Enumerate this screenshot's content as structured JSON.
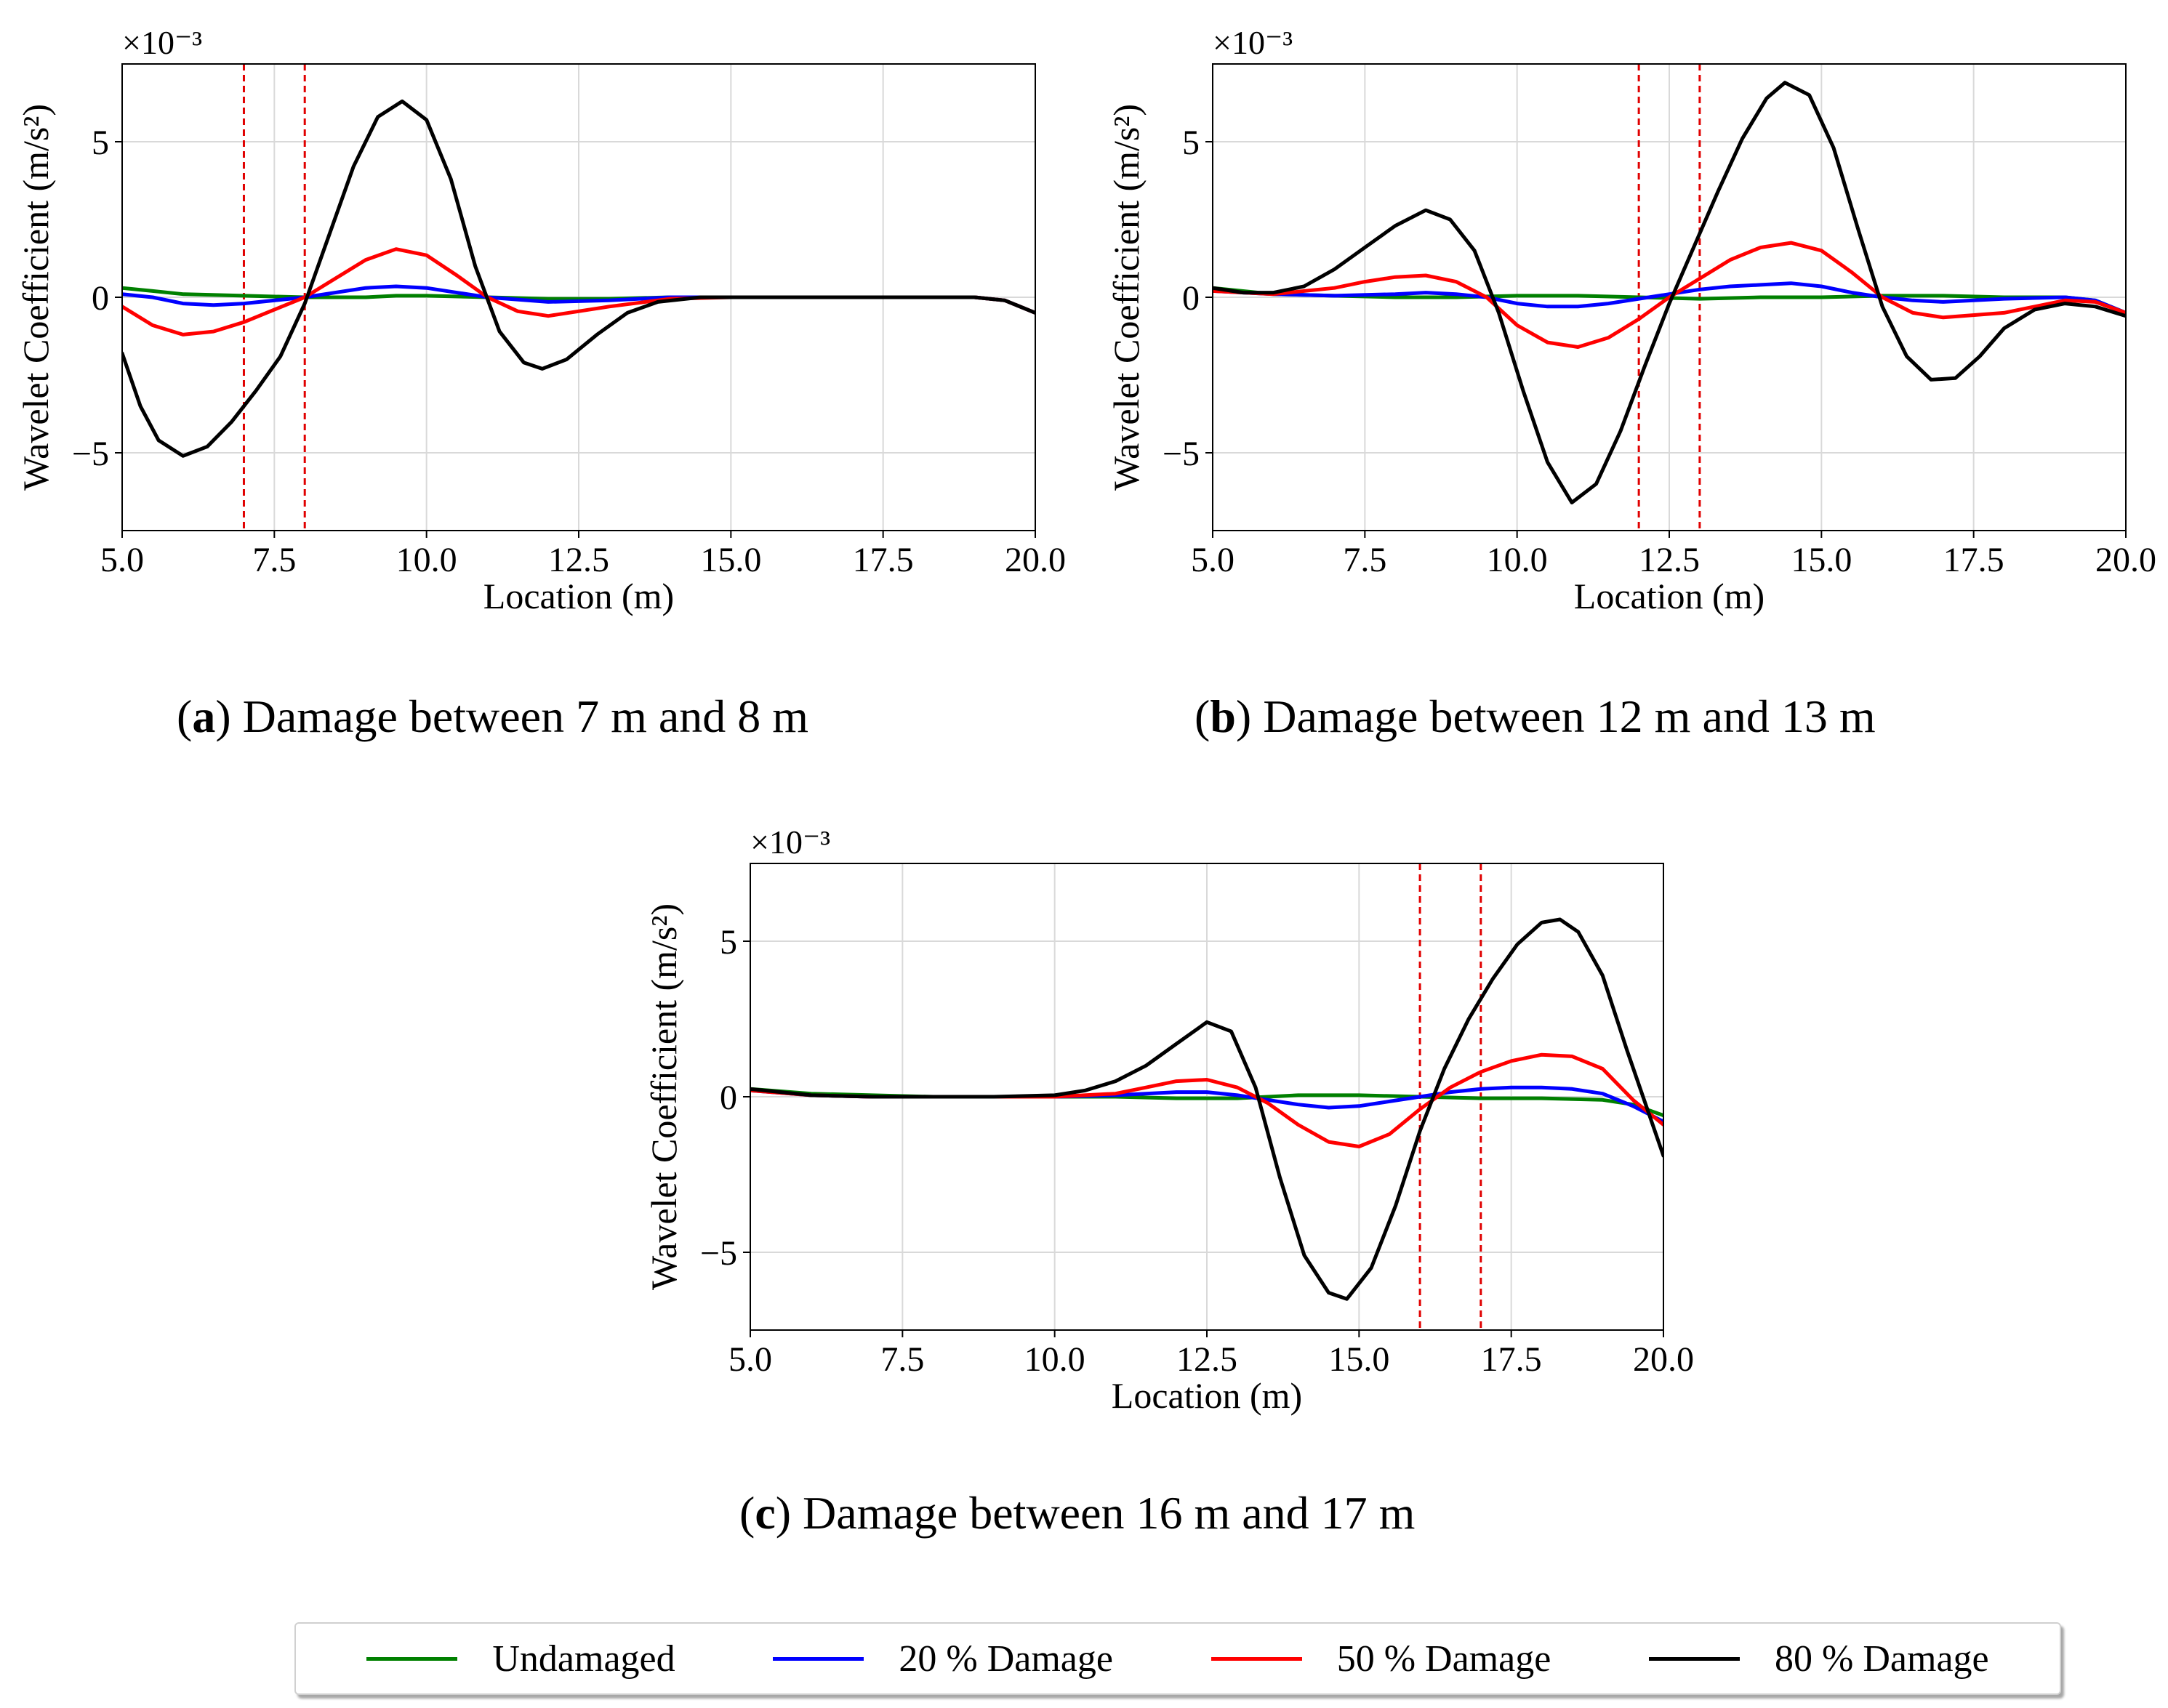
{
  "chart_data": [
    {
      "type": "line",
      "panel": "a",
      "caption_label": "a",
      "caption_text": "Damage between 7 m and 8 m",
      "xlabel": "Location (m)",
      "ylabel": "Wavelet Coefficient (m/s²)",
      "y_multiplier": "×10⁻³",
      "xlim": [
        5.0,
        20.0
      ],
      "ylim": [
        -7.5,
        7.5
      ],
      "xticks": [
        5.0,
        7.5,
        10.0,
        12.5,
        15.0,
        17.5,
        20.0
      ],
      "xtick_labels": [
        "5.0",
        "7.5",
        "10.0",
        "12.5",
        "15.0",
        "17.5",
        "20.0"
      ],
      "yticks": [
        -5,
        0,
        5
      ],
      "ytick_labels": [
        "−5",
        "0",
        "5"
      ],
      "grid": true,
      "damage_lines": [
        7.0,
        8.0
      ],
      "series": [
        {
          "name": "Undamaged",
          "x": [
            5,
            5.5,
            6,
            7,
            8,
            9,
            9.5,
            10,
            11,
            12,
            13,
            14,
            15,
            16,
            17,
            18,
            19,
            19.5,
            20
          ],
          "y": [
            0.3,
            0.2,
            0.1,
            0.05,
            0.0,
            0.0,
            0.05,
            0.05,
            0.0,
            -0.05,
            -0.05,
            0.0,
            0.0,
            0.0,
            0.0,
            0.0,
            0.0,
            -0.1,
            -0.5
          ]
        },
        {
          "name": "20 % Damage",
          "x": [
            5,
            5.5,
            6,
            6.5,
            7,
            8,
            9,
            9.5,
            10,
            11,
            12,
            13,
            14,
            15,
            16,
            17,
            18,
            19,
            19.5,
            20
          ],
          "y": [
            0.1,
            0.0,
            -0.2,
            -0.25,
            -0.2,
            0.0,
            0.3,
            0.35,
            0.3,
            0.0,
            -0.15,
            -0.1,
            0.0,
            0.0,
            0.0,
            0.0,
            0.0,
            0.0,
            -0.1,
            -0.5
          ]
        },
        {
          "name": "50 % Damage",
          "x": [
            5,
            5.5,
            6,
            6.5,
            7,
            7.5,
            8,
            8.5,
            9,
            9.5,
            10,
            10.5,
            11,
            11.5,
            12,
            13,
            14,
            15,
            16,
            17,
            18,
            19,
            19.5,
            20
          ],
          "y": [
            -0.3,
            -0.9,
            -1.2,
            -1.1,
            -0.8,
            -0.4,
            0.0,
            0.6,
            1.2,
            1.55,
            1.35,
            0.7,
            0.0,
            -0.45,
            -0.6,
            -0.3,
            -0.05,
            0.0,
            0.0,
            0.0,
            0.0,
            0.0,
            -0.1,
            -0.5
          ]
        },
        {
          "name": "80 % Damage",
          "x": [
            5,
            5.3,
            5.6,
            6.0,
            6.4,
            6.8,
            7.2,
            7.6,
            8.0,
            8.4,
            8.8,
            9.2,
            9.6,
            10.0,
            10.4,
            10.8,
            11.2,
            11.6,
            11.9,
            12.3,
            12.8,
            13.3,
            13.8,
            14.5,
            15.5,
            17,
            18,
            19,
            19.5,
            20
          ],
          "y": [
            -1.8,
            -3.5,
            -4.6,
            -5.1,
            -4.8,
            -4.0,
            -3.0,
            -1.9,
            -0.2,
            2.0,
            4.2,
            5.8,
            6.3,
            5.7,
            3.8,
            1.0,
            -1.1,
            -2.1,
            -2.3,
            -2.0,
            -1.2,
            -0.5,
            -0.15,
            0.0,
            0.0,
            0.0,
            0.0,
            0.0,
            -0.1,
            -0.5
          ]
        }
      ]
    },
    {
      "type": "line",
      "panel": "b",
      "caption_label": "b",
      "caption_text": "Damage between 12 m and 13 m",
      "xlabel": "Location (m)",
      "ylabel": "Wavelet Coefficient (m/s²)",
      "y_multiplier": "×10⁻³",
      "xlim": [
        5.0,
        20.0
      ],
      "ylim": [
        -7.5,
        7.5
      ],
      "xticks": [
        5.0,
        7.5,
        10.0,
        12.5,
        15.0,
        17.5,
        20.0
      ],
      "xtick_labels": [
        "5.0",
        "7.5",
        "10.0",
        "12.5",
        "15.0",
        "17.5",
        "20.0"
      ],
      "yticks": [
        -5,
        0,
        5
      ],
      "ytick_labels": [
        "−5",
        "0",
        "5"
      ],
      "grid": true,
      "damage_lines": [
        12.0,
        13.0
      ],
      "series": [
        {
          "name": "Undamaged",
          "x": [
            5,
            6,
            7,
            8,
            9,
            10,
            11,
            12,
            13,
            14,
            15,
            16,
            17,
            18,
            19,
            19.5,
            20
          ],
          "y": [
            0.3,
            0.1,
            0.05,
            0.0,
            0.0,
            0.05,
            0.05,
            0.0,
            -0.05,
            0.0,
            0.0,
            0.05,
            0.05,
            0.0,
            0.0,
            -0.1,
            -0.5
          ]
        },
        {
          "name": "20 % Damage",
          "x": [
            5,
            6,
            7,
            8,
            8.5,
            9,
            9.5,
            10,
            10.5,
            11,
            11.5,
            12,
            12.5,
            13,
            13.5,
            14,
            14.5,
            15,
            15.5,
            16,
            16.5,
            17,
            18,
            19,
            19.5,
            20
          ],
          "y": [
            0.2,
            0.1,
            0.05,
            0.1,
            0.15,
            0.1,
            0.0,
            -0.2,
            -0.3,
            -0.3,
            -0.2,
            -0.05,
            0.1,
            0.25,
            0.35,
            0.4,
            0.45,
            0.35,
            0.15,
            0.0,
            -0.1,
            -0.15,
            -0.05,
            0.0,
            -0.1,
            -0.5
          ]
        },
        {
          "name": "50 % Damage",
          "x": [
            5,
            6,
            7,
            7.5,
            8,
            8.5,
            9,
            9.5,
            10,
            10.5,
            11,
            11.5,
            12,
            12.5,
            13,
            13.5,
            14,
            14.5,
            15,
            15.5,
            16,
            16.5,
            17,
            18,
            19,
            19.5,
            20
          ],
          "y": [
            0.2,
            0.1,
            0.3,
            0.5,
            0.65,
            0.7,
            0.5,
            0.0,
            -0.9,
            -1.45,
            -1.6,
            -1.3,
            -0.7,
            0.0,
            0.6,
            1.2,
            1.6,
            1.75,
            1.5,
            0.8,
            0.0,
            -0.5,
            -0.65,
            -0.5,
            -0.1,
            -0.15,
            -0.5
          ]
        },
        {
          "name": "80 % Damage",
          "x": [
            5,
            5.5,
            6,
            6.5,
            7,
            7.5,
            8,
            8.5,
            8.9,
            9.3,
            9.7,
            10.1,
            10.5,
            10.9,
            11.3,
            11.7,
            12.1,
            12.5,
            12.9,
            13.3,
            13.7,
            14.1,
            14.4,
            14.8,
            15.2,
            15.6,
            16.0,
            16.4,
            16.8,
            17.2,
            17.6,
            18.0,
            18.5,
            19,
            19.5,
            20
          ],
          "y": [
            0.3,
            0.15,
            0.15,
            0.35,
            0.9,
            1.6,
            2.3,
            2.8,
            2.5,
            1.5,
            -0.5,
            -3.0,
            -5.3,
            -6.6,
            -6.0,
            -4.3,
            -2.2,
            -0.2,
            1.6,
            3.4,
            5.1,
            6.4,
            6.9,
            6.5,
            4.8,
            2.2,
            -0.3,
            -1.9,
            -2.65,
            -2.6,
            -1.9,
            -1.0,
            -0.4,
            -0.2,
            -0.3,
            -0.6
          ]
        }
      ]
    },
    {
      "type": "line",
      "panel": "c",
      "caption_label": "c",
      "caption_text": "Damage between 16 m and 17 m",
      "xlabel": "Location (m)",
      "ylabel": "Wavelet Coefficient (m/s²)",
      "y_multiplier": "×10⁻³",
      "xlim": [
        5.0,
        20.0
      ],
      "ylim": [
        -7.5,
        7.5
      ],
      "xticks": [
        5.0,
        7.5,
        10.0,
        12.5,
        15.0,
        17.5,
        20.0
      ],
      "xtick_labels": [
        "5.0",
        "7.5",
        "10.0",
        "12.5",
        "15.0",
        "17.5",
        "20.0"
      ],
      "yticks": [
        -5,
        0,
        5
      ],
      "ytick_labels": [
        "−5",
        "0",
        "5"
      ],
      "grid": true,
      "damage_lines": [
        16.0,
        17.0
      ],
      "series": [
        {
          "name": "Undamaged",
          "x": [
            5,
            6,
            7,
            8,
            9,
            10,
            11,
            12,
            13,
            14,
            15,
            16,
            17,
            18,
            19,
            19.5,
            20
          ],
          "y": [
            0.25,
            0.1,
            0.05,
            0.0,
            0.0,
            0.0,
            0.0,
            -0.05,
            -0.05,
            0.05,
            0.05,
            0.0,
            -0.05,
            -0.05,
            -0.1,
            -0.25,
            -0.6
          ]
        },
        {
          "name": "20 % Damage",
          "x": [
            5,
            6,
            7,
            8,
            9,
            10,
            11,
            12,
            12.5,
            13,
            13.5,
            14,
            14.5,
            15,
            15.5,
            16,
            16.5,
            17,
            17.5,
            18,
            18.5,
            19,
            19.5,
            20
          ],
          "y": [
            0.2,
            0.05,
            0.0,
            0.0,
            0.0,
            0.0,
            0.05,
            0.15,
            0.15,
            0.05,
            -0.1,
            -0.25,
            -0.35,
            -0.3,
            -0.15,
            0.0,
            0.15,
            0.25,
            0.3,
            0.3,
            0.25,
            0.1,
            -0.3,
            -0.8
          ]
        },
        {
          "name": "50 % Damage",
          "x": [
            5,
            6,
            7,
            8,
            9,
            10,
            11,
            11.5,
            12,
            12.5,
            13,
            13.5,
            14,
            14.5,
            15,
            15.5,
            16,
            16.5,
            17,
            17.5,
            18,
            18.5,
            19,
            19.5,
            20
          ],
          "y": [
            0.2,
            0.05,
            0.0,
            0.0,
            0.0,
            0.0,
            0.1,
            0.3,
            0.5,
            0.55,
            0.3,
            -0.2,
            -0.9,
            -1.45,
            -1.6,
            -1.2,
            -0.4,
            0.3,
            0.8,
            1.15,
            1.35,
            1.3,
            0.9,
            -0.1,
            -0.9
          ]
        },
        {
          "name": "80 % Damage",
          "x": [
            5,
            6,
            7,
            8,
            9,
            10,
            10.5,
            11,
            11.5,
            12,
            12.5,
            12.9,
            13.3,
            13.7,
            14.1,
            14.5,
            14.8,
            15.2,
            15.6,
            16.0,
            16.4,
            16.8,
            17.2,
            17.6,
            18.0,
            18.3,
            18.6,
            19.0,
            19.4,
            19.7,
            20
          ],
          "y": [
            0.25,
            0.05,
            0.0,
            0.0,
            0.0,
            0.05,
            0.2,
            0.5,
            1.0,
            1.7,
            2.4,
            2.1,
            0.3,
            -2.6,
            -5.1,
            -6.3,
            -6.5,
            -5.5,
            -3.5,
            -1.1,
            0.9,
            2.5,
            3.8,
            4.9,
            5.6,
            5.7,
            5.3,
            3.9,
            1.5,
            -0.2,
            -1.9
          ]
        }
      ]
    }
  ],
  "colors": {
    "Undamaged": "#008000",
    "20 % Damage": "#0000ff",
    "50 % Damage": "#ff0000",
    "80 % Damage": "#000000",
    "damage_line": "#e00000",
    "grid": "#d9d9d9"
  },
  "legend": {
    "placement": "bottom-center",
    "items": [
      {
        "label": "Undamaged",
        "color": "#008000"
      },
      {
        "label": "20 % Damage",
        "color": "#0000ff"
      },
      {
        "label": "50 % Damage",
        "color": "#ff0000"
      },
      {
        "label": "80 % Damage",
        "color": "#000000"
      }
    ]
  }
}
